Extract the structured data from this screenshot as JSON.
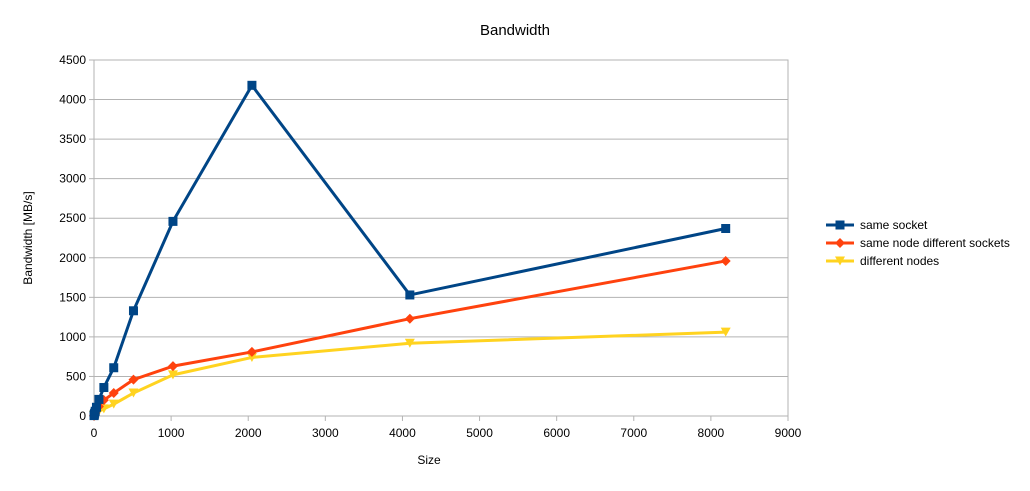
{
  "chart_data": {
    "type": "line",
    "title": "Bandwidth",
    "xlabel": "Size",
    "ylabel": "Bandwidth [MB/s]",
    "xlim": [
      0,
      9000
    ],
    "ylim": [
      0,
      4500
    ],
    "x_ticks": [
      0,
      1000,
      2000,
      3000,
      4000,
      5000,
      6000,
      7000,
      8000,
      9000
    ],
    "y_ticks": [
      0,
      500,
      1000,
      1500,
      2000,
      2500,
      3000,
      3500,
      4000,
      4500
    ],
    "grid": "horizontal",
    "legend_position": "right",
    "series": [
      {
        "name": "same socket",
        "color": "#004586",
        "marker": "square",
        "x": [
          1,
          2,
          4,
          8,
          16,
          32,
          64,
          128,
          256,
          512,
          1024,
          2048,
          4096,
          8192
        ],
        "y": [
          5,
          10,
          20,
          35,
          60,
          110,
          210,
          360,
          610,
          1330,
          2460,
          4180,
          1530,
          2370
        ]
      },
      {
        "name": "same node different sockets",
        "color": "#ff420e",
        "marker": "diamond",
        "x": [
          1,
          2,
          4,
          8,
          16,
          32,
          64,
          128,
          256,
          512,
          1024,
          2048,
          4096,
          8192
        ],
        "y": [
          3,
          6,
          12,
          22,
          40,
          70,
          120,
          200,
          290,
          460,
          630,
          810,
          1230,
          1960
        ]
      },
      {
        "name": "different nodes",
        "color": "#ffd320",
        "marker": "triangle-down",
        "x": [
          1,
          2,
          4,
          8,
          16,
          32,
          64,
          128,
          256,
          512,
          1024,
          2048,
          4096,
          8192
        ],
        "y": [
          2,
          4,
          8,
          15,
          25,
          40,
          60,
          90,
          150,
          290,
          520,
          740,
          920,
          1060
        ]
      }
    ]
  }
}
